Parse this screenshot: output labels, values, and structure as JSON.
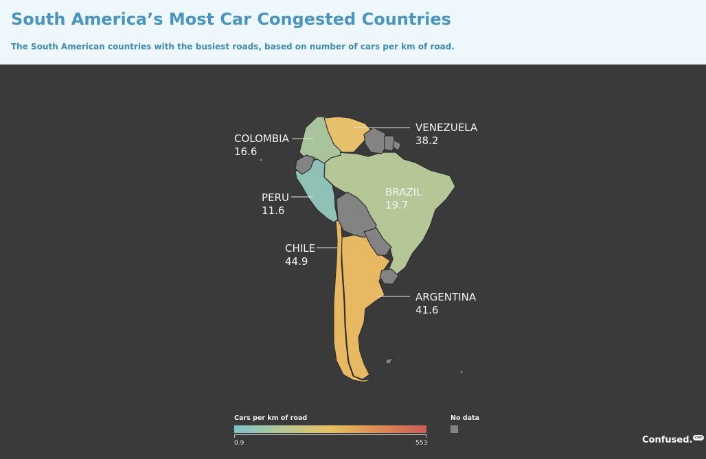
{
  "header": {
    "title": "South America’s Most Car Congested Countries",
    "subtitle": "The South American countries with the busiest roads, based on number of cars per km of road."
  },
  "map": {
    "region": "South America",
    "countries": [
      {
        "id": "venezuela",
        "name": "VENEZUELA",
        "value": "38.2",
        "color": "#e7c06b"
      },
      {
        "id": "colombia",
        "name": "COLOMBIA",
        "value": "16.6",
        "color": "#a9c49c"
      },
      {
        "id": "peru",
        "name": "PERU",
        "value": "11.6",
        "color": "#8fc1b7"
      },
      {
        "id": "brazil",
        "name": "BRAZIL",
        "value": "19.7",
        "color": "#b5c796"
      },
      {
        "id": "chile",
        "name": "CHILE",
        "value": "44.9",
        "color": "#e8b963"
      },
      {
        "id": "argentina",
        "name": "ARGENTINA",
        "value": "41.6",
        "color": "#e8b963"
      }
    ],
    "no_data_color": "#838383"
  },
  "legend": {
    "title": "Cars per km of road",
    "min": "0.9",
    "max": "553",
    "gradient_colors": [
      "#7cc3cc",
      "#b6c796",
      "#e8c060",
      "#dc8c56",
      "#cc5b57"
    ],
    "no_data_label": "No data"
  },
  "brand": {
    "name": "Confused.",
    "badge": "com"
  }
}
